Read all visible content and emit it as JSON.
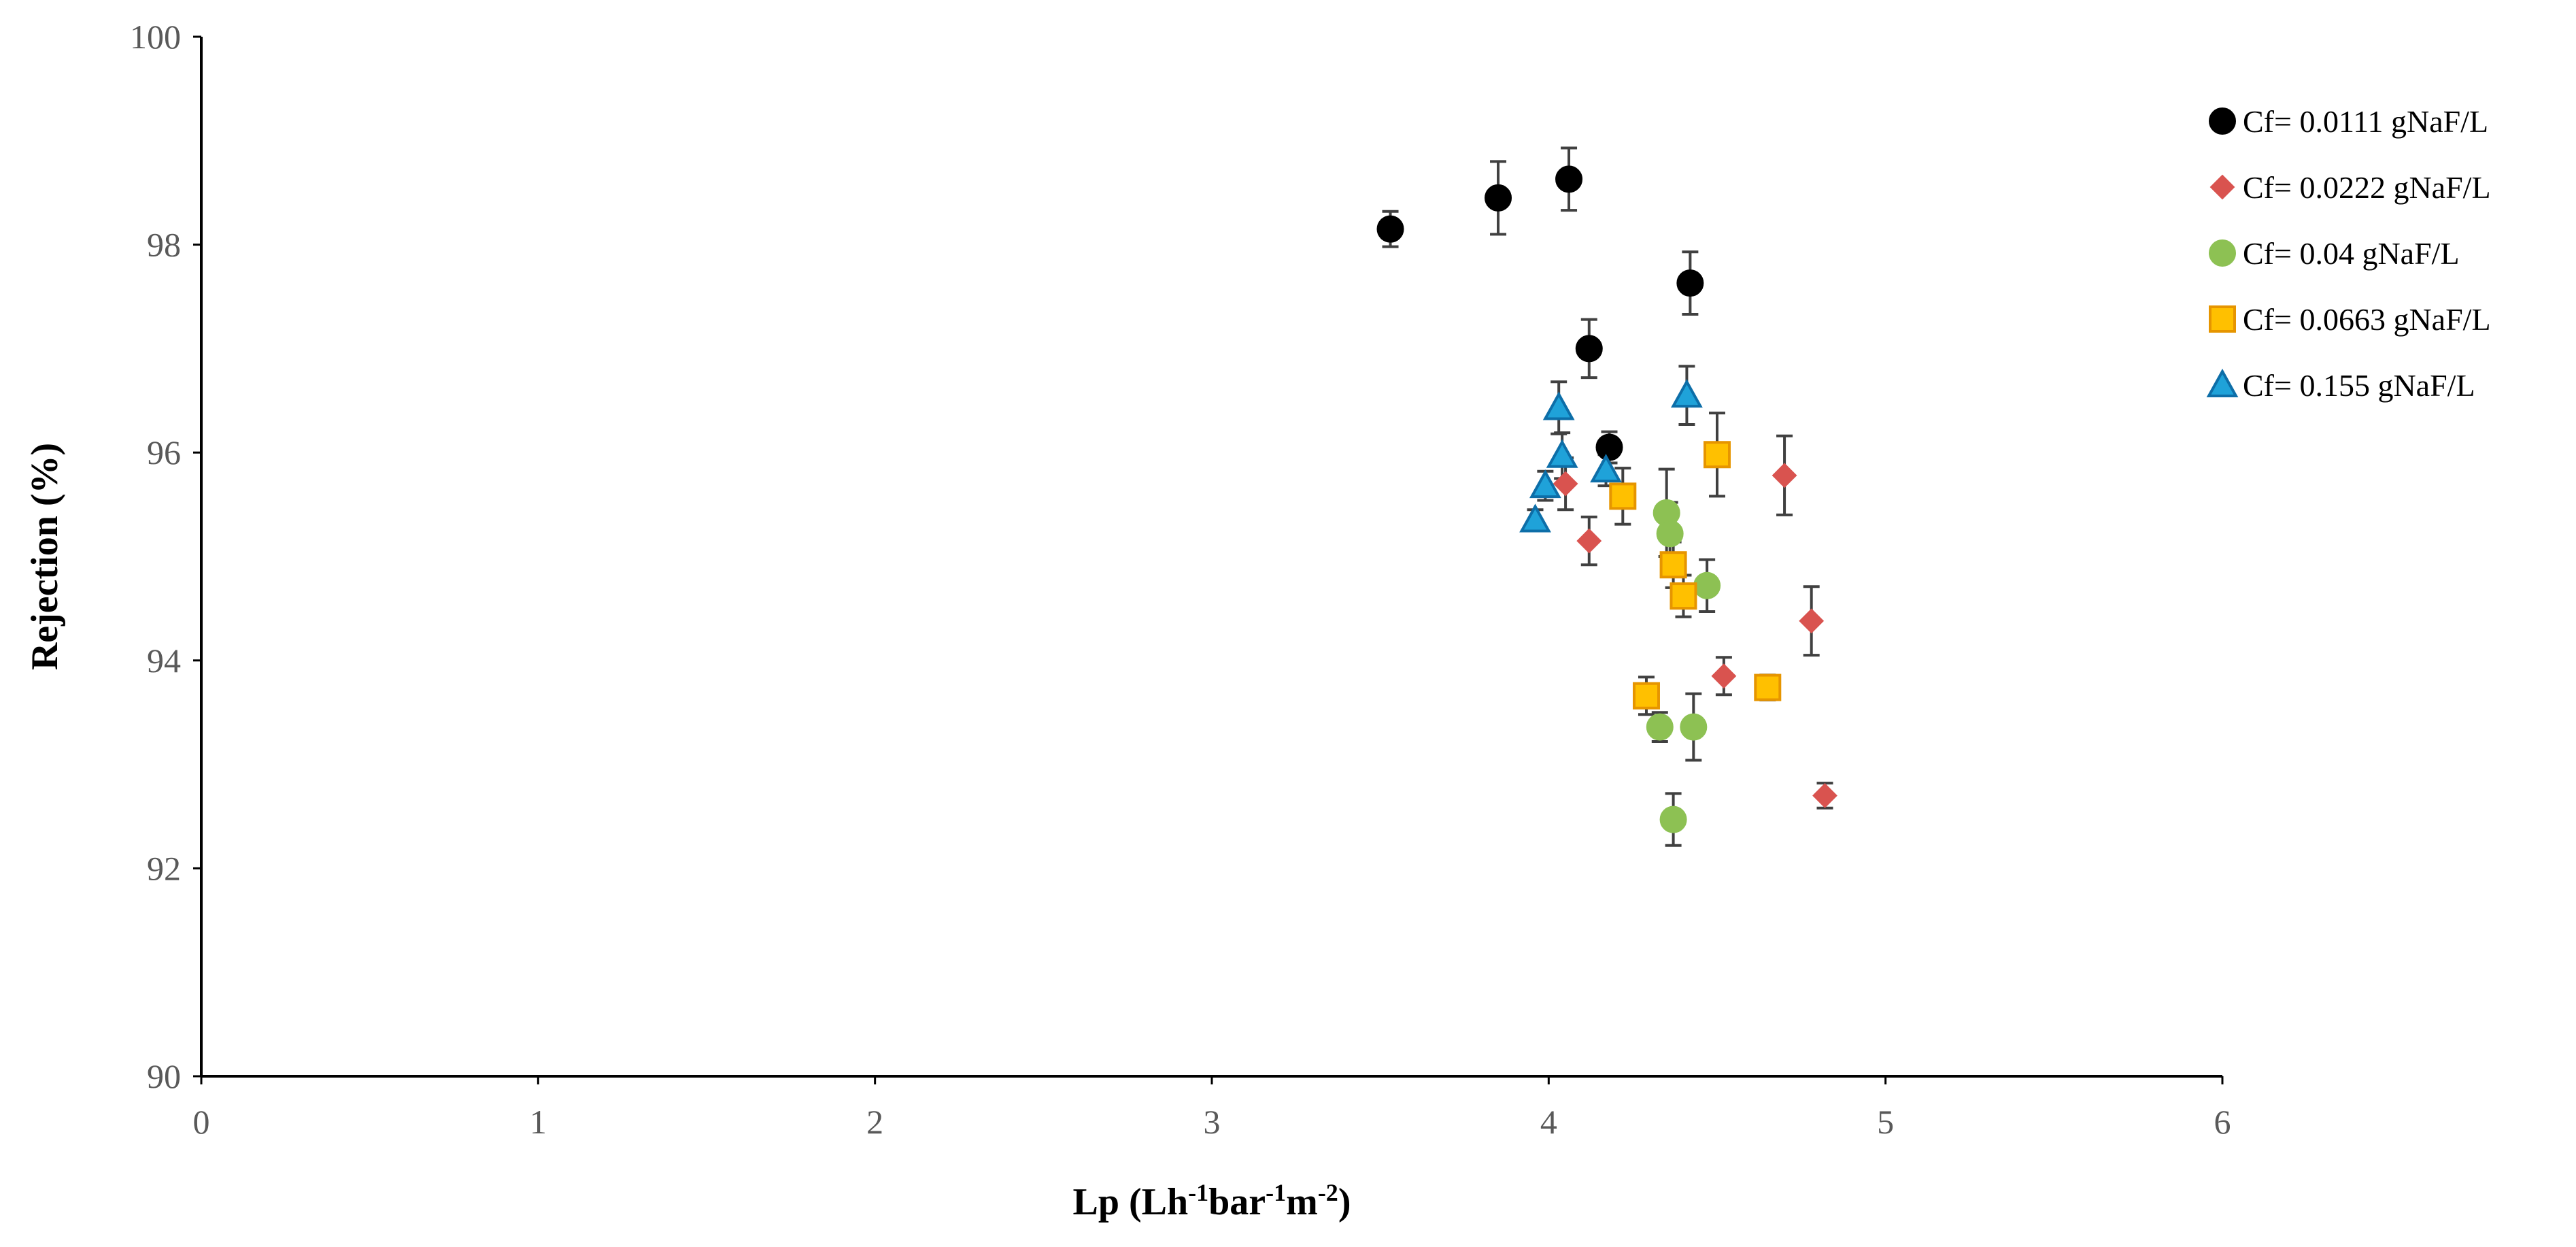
{
  "chart_data": {
    "type": "scatter",
    "xlabel": {
      "base": "Lp (Lh",
      "sup1": "-1",
      "mid": "bar",
      "sup2": "-1",
      "mid2": "m",
      "sup3": "-2",
      "end": ")"
    },
    "ylabel": "Rejection  (%)",
    "xlim": [
      0,
      6
    ],
    "ylim": [
      90,
      100
    ],
    "xticks": [
      "0",
      "1",
      "2",
      "3",
      "4",
      "5",
      "6"
    ],
    "yticks": [
      "90",
      "92",
      "94",
      "96",
      "98",
      "100"
    ],
    "grid": false,
    "legend_position": "top-right",
    "series": [
      {
        "name": "Cf= 0.0111 gNaF/L",
        "marker": "circle",
        "color": "#000000",
        "points": [
          {
            "x": 3.53,
            "y": 98.15,
            "err": 0.17
          },
          {
            "x": 3.85,
            "y": 98.45,
            "err": 0.35
          },
          {
            "x": 4.06,
            "y": 98.63,
            "err": 0.3
          },
          {
            "x": 4.42,
            "y": 97.63,
            "err": 0.3
          },
          {
            "x": 4.12,
            "y": 97.0,
            "err": 0.28
          },
          {
            "x": 4.18,
            "y": 96.05,
            "err": 0.15
          }
        ]
      },
      {
        "name": "Cf= 0.0222 gNaF/L",
        "marker": "diamond",
        "color": "#d9534f",
        "points": [
          {
            "x": 4.05,
            "y": 95.7,
            "err": 0.25
          },
          {
            "x": 4.12,
            "y": 95.15,
            "err": 0.23
          },
          {
            "x": 4.7,
            "y": 95.78,
            "err": 0.38
          },
          {
            "x": 4.78,
            "y": 94.38,
            "err": 0.33
          },
          {
            "x": 4.52,
            "y": 93.85,
            "err": 0.18
          },
          {
            "x": 4.82,
            "y": 92.7,
            "err": 0.12
          }
        ]
      },
      {
        "name": "Cf= 0.04 gNaF/L",
        "marker": "circle",
        "color": "#8dc153",
        "points": [
          {
            "x": 4.35,
            "y": 95.42,
            "err": 0.42
          },
          {
            "x": 4.36,
            "y": 95.22,
            "err": 0.3
          },
          {
            "x": 4.47,
            "y": 94.72,
            "err": 0.25
          },
          {
            "x": 4.33,
            "y": 93.36,
            "err": 0.14
          },
          {
            "x": 4.43,
            "y": 93.36,
            "err": 0.32
          },
          {
            "x": 4.37,
            "y": 92.47,
            "err": 0.25
          }
        ]
      },
      {
        "name": "Cf= 0.0663 gNaF/L",
        "marker": "square",
        "color": "#ffc000",
        "stroke": "#e69500",
        "points": [
          {
            "x": 4.22,
            "y": 95.58,
            "err": 0.27
          },
          {
            "x": 4.5,
            "y": 95.98,
            "err": 0.4
          },
          {
            "x": 4.37,
            "y": 94.92,
            "err": 0.22
          },
          {
            "x": 4.4,
            "y": 94.62,
            "err": 0.2
          },
          {
            "x": 4.29,
            "y": 93.66,
            "err": 0.18
          },
          {
            "x": 4.65,
            "y": 93.74,
            "err": 0.12
          }
        ]
      },
      {
        "name": "Cf= 0.155 gNaF/L",
        "marker": "triangle",
        "color": "#1fa2d9",
        "stroke": "#0d6ea8",
        "points": [
          {
            "x": 4.03,
            "y": 96.43,
            "err": 0.25
          },
          {
            "x": 4.04,
            "y": 95.97,
            "err": 0.22
          },
          {
            "x": 4.41,
            "y": 96.55,
            "err": 0.28
          },
          {
            "x": 4.17,
            "y": 95.83,
            "err": 0.15
          },
          {
            "x": 3.99,
            "y": 95.68,
            "err": 0.14
          },
          {
            "x": 3.96,
            "y": 95.35,
            "err": 0.1
          }
        ]
      }
    ]
  }
}
